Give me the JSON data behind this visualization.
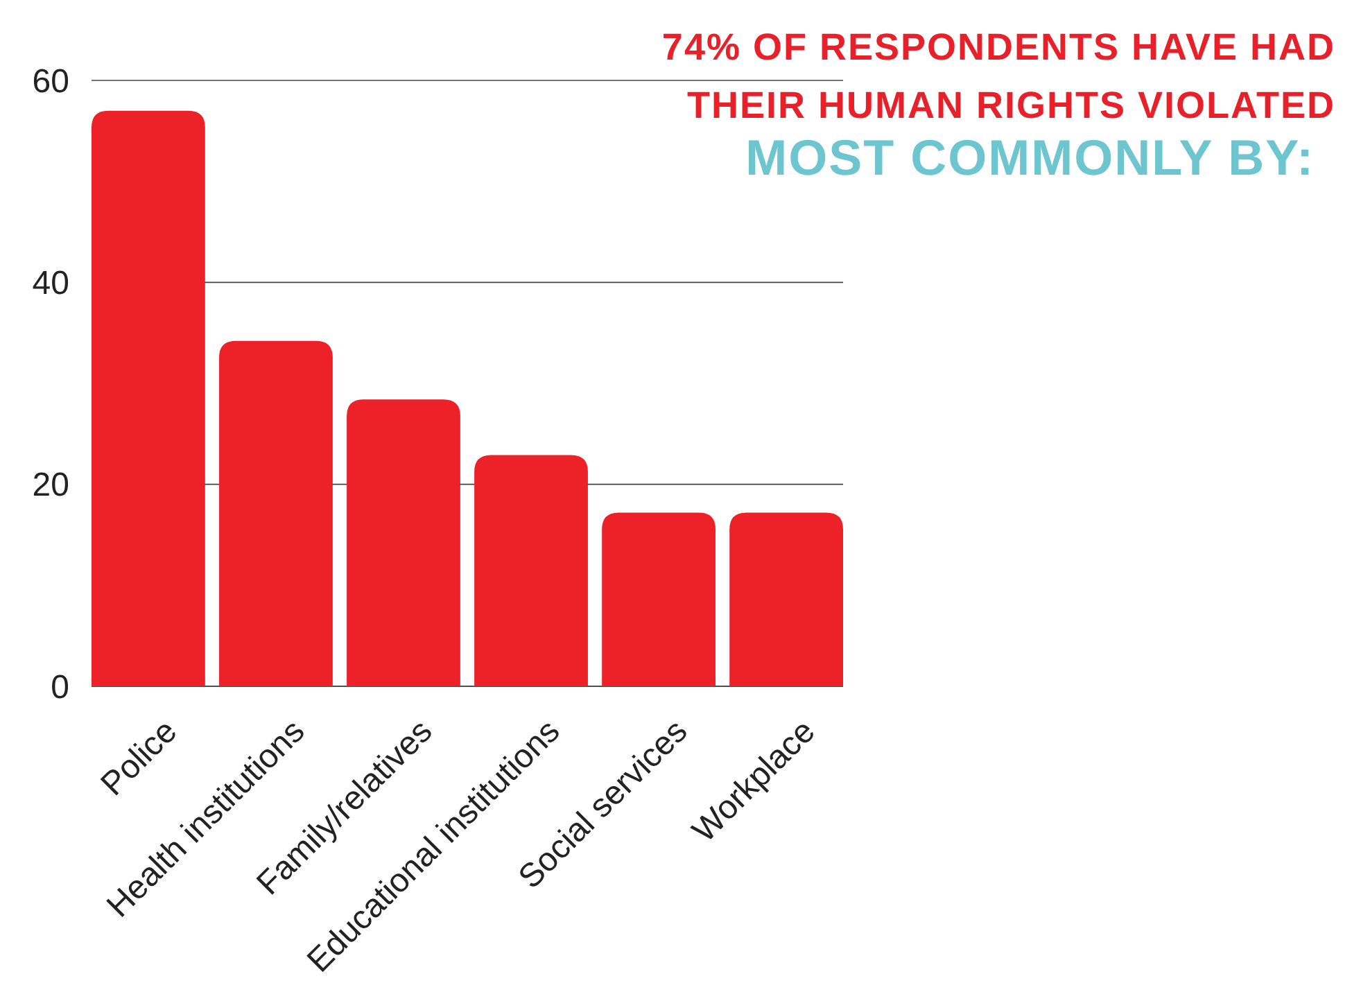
{
  "chart_data": {
    "type": "bar",
    "title": "74% OF RESPONDENTS HAVE HAD THEIR HUMAN RIGHTS VIOLATED",
    "subtitle": "MOST COMMONLY BY:",
    "categories": [
      "Police",
      "Health institutions",
      "Family/relatives",
      "Educational institutions",
      "Social services",
      "Workplace"
    ],
    "values": [
      57,
      34.2,
      28.4,
      22.9,
      17.2,
      17.2
    ],
    "color": "#ed2229",
    "ylim": [
      0,
      60
    ],
    "yticks": [
      0,
      20,
      40,
      60
    ],
    "grid": "y"
  }
}
